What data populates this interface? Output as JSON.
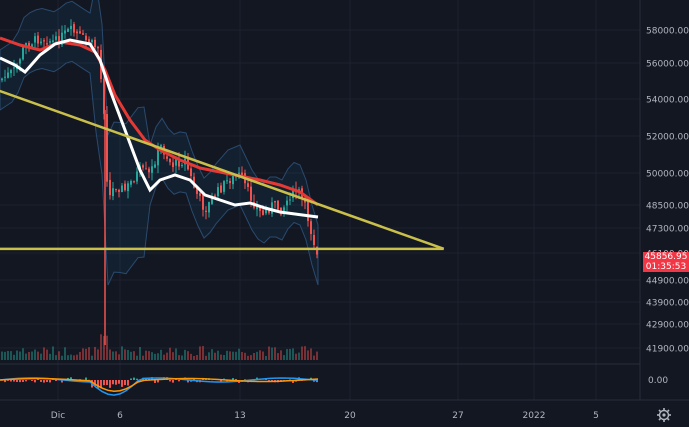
{
  "colors": {
    "background": "#131722",
    "grid": "#1e2230",
    "axis_text": "#b2b5be",
    "candle_up": "#26a69a",
    "candle_down": "#ef5350",
    "sma_white": "#ffffff",
    "ema_red": "#e53935",
    "trendline": "#c9bf4a",
    "bollinger": "#2a4a6e",
    "volume": "#3a3f4b",
    "macd_line": "#2196f3",
    "signal_line": "#ff9800",
    "price_tag": "#f23645"
  },
  "price_tag": {
    "price": "45856.95",
    "countdown": "01:35:53"
  },
  "settings_icon": "gear-icon",
  "chart_data": {
    "type": "candlestick",
    "title": "",
    "y_axis": {
      "ticks": [
        "58000.00",
        "56000.00",
        "54000.00",
        "52000.00",
        "50000.00",
        "48500.00",
        "47300.00",
        "46100.00",
        "44900.00",
        "43900.00",
        "42900.00",
        "41900.00"
      ],
      "oscillator_ticks": [
        "0.00"
      ]
    },
    "x_axis": {
      "ticks": [
        "Dic",
        "6",
        "13",
        "20",
        "27",
        "2022",
        "5"
      ]
    },
    "overlays": [
      {
        "name": "descending trendline",
        "points": [
          {
            "x": "2021-11-28",
            "y": 54800
          },
          {
            "x": "2021-12-26",
            "y": 46300
          }
        ]
      },
      {
        "name": "horizontal support",
        "points": [
          {
            "x": "2021-11-28",
            "y": 46300
          },
          {
            "x": "2021-12-26",
            "y": 46300
          }
        ]
      }
    ]
  }
}
